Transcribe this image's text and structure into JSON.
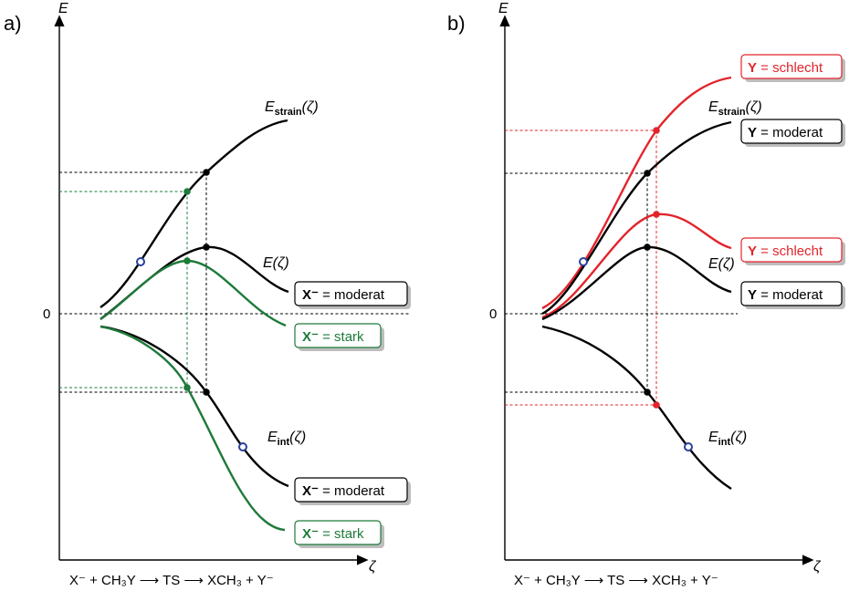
{
  "panel_a": {
    "label": "a)",
    "y_axis": "E",
    "x_axis": "ζ",
    "zero": "0",
    "curve_strain": "E",
    "curve_strain_sub": "strain",
    "curve_strain_arg": "(ζ)",
    "curve_e": "E(ζ)",
    "curve_int": "E",
    "curve_int_sub": "int",
    "curve_int_arg": "(ζ)",
    "box1_species": "X⁻",
    "box1_text": " = moderat",
    "box2_species": "X⁻",
    "box2_text": " = stark",
    "box3_species": "X⁻",
    "box3_text": " = moderat",
    "box4_species": "X⁻",
    "box4_text": " = stark",
    "reaction": "X⁻ + CH₃Y ⟶ TS ⟶ XCH₃ + Y⁻"
  },
  "panel_b": {
    "label": "b)",
    "y_axis": "E",
    "x_axis": "ζ",
    "zero": "0",
    "curve_strain": "E",
    "curve_strain_sub": "strain",
    "curve_strain_arg": "(ζ)",
    "curve_e": "E(ζ)",
    "curve_int": "E",
    "curve_int_sub": "int",
    "curve_int_arg": "(ζ)",
    "box1_species": "Y",
    "box1_text": " = schlecht",
    "box2_species": "Y",
    "box2_text": " = moderat",
    "box3_species": "Y",
    "box3_text": " = schlecht",
    "box4_species": "Y",
    "box4_text": " = moderat",
    "reaction": "X⁻ + CH₃Y ⟶ TS ⟶ XCH₃ + Y⁻"
  },
  "colors": {
    "green": "#1e7a3a",
    "red": "#e3242b",
    "blue_marker": "#2a3f9d",
    "black": "#000000"
  }
}
